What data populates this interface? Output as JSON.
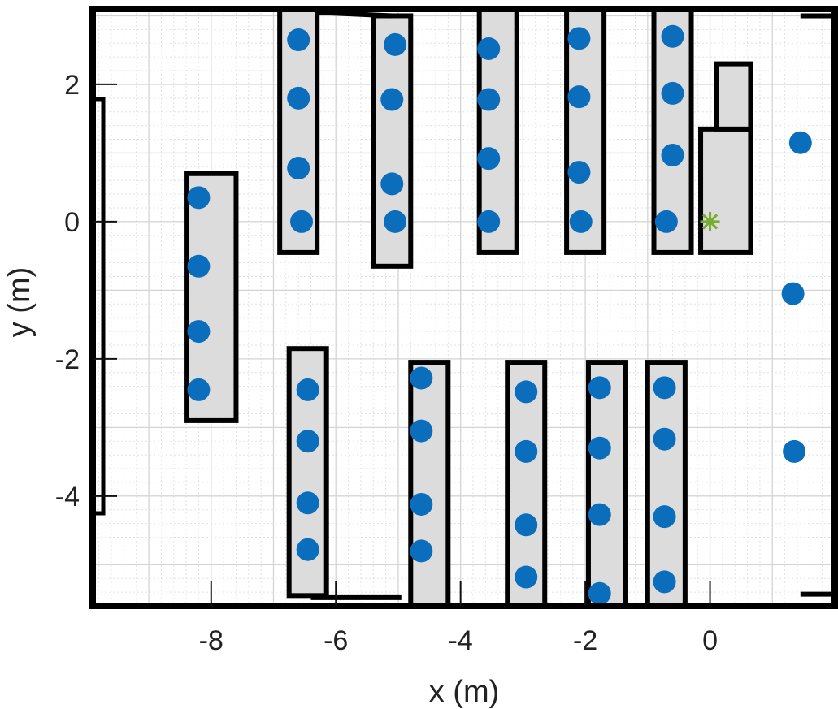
{
  "chart_data": {
    "type": "scatter",
    "xlabel": "x (m)",
    "ylabel": "y (m)",
    "xlim": [
      -9.9,
      2.0
    ],
    "ylim": [
      -5.6,
      3.1
    ],
    "xticks": [
      -8,
      -6,
      -4,
      -2,
      0
    ],
    "xtick_labels": [
      "-8",
      "-6",
      "-4",
      "-2",
      "0"
    ],
    "yticks": [
      2,
      0,
      -2,
      -4
    ],
    "ytick_labels": [
      "2",
      "0",
      "-2",
      "-4"
    ],
    "minor_step": 0.2,
    "grid": true,
    "colors": {
      "points": "#0a6ebd",
      "marker": "#77ac30",
      "obstacle_fill": "#dcdcdc",
      "obstacle_edge": "#000000",
      "grid_major": "#d4d4d4",
      "grid_minor": "#e2e2e2"
    },
    "obstacles": [
      {
        "x0": -8.4,
        "x1": -7.6,
        "y0": -2.9,
        "y1": 0.7
      },
      {
        "x0": -6.9,
        "x1": -6.3,
        "y0": -0.45,
        "y1": 3.1
      },
      {
        "x0": -5.4,
        "x1": -4.8,
        "y0": -0.65,
        "y1": 3.0
      },
      {
        "x0": -3.7,
        "x1": -3.1,
        "y0": -0.45,
        "y1": 3.1
      },
      {
        "x0": -2.3,
        "x1": -1.7,
        "y0": -0.45,
        "y1": 3.1
      },
      {
        "x0": -0.9,
        "x1": -0.3,
        "y0": -0.45,
        "y1": 3.1
      },
      {
        "x0": -6.75,
        "x1": -6.15,
        "y0": -5.45,
        "y1": -1.85
      },
      {
        "x0": -4.8,
        "x1": -4.2,
        "y0": -5.6,
        "y1": -2.05
      },
      {
        "x0": -3.25,
        "x1": -2.65,
        "y0": -5.6,
        "y1": -2.05
      },
      {
        "x0": -1.95,
        "x1": -1.35,
        "y0": -5.6,
        "y1": -2.05
      },
      {
        "x0": -1.0,
        "x1": -0.4,
        "y0": -5.6,
        "y1": -2.05
      },
      {
        "x0": -0.15,
        "x1": 0.65,
        "y0": -0.45,
        "y1": 1.35
      },
      {
        "x0": 0.1,
        "x1": 0.65,
        "y0": 1.35,
        "y1": 2.3
      }
    ],
    "walls": [
      {
        "x0": -6.3,
        "x1": -5.1,
        "y0": 3.05,
        "y1": 3.0
      },
      {
        "x0": -6.4,
        "x1": -4.95,
        "y0": -5.48,
        "y1": -5.48
      },
      {
        "x0": 1.45,
        "x1": 2.0,
        "y0": 3.0,
        "y1": 3.0
      },
      {
        "x0": 1.45,
        "x1": 2.0,
        "y0": -5.43,
        "y1": -5.43
      }
    ],
    "points": [
      {
        "x": -8.2,
        "y": 0.35
      },
      {
        "x": -8.2,
        "y": -0.65
      },
      {
        "x": -8.2,
        "y": -1.6
      },
      {
        "x": -8.2,
        "y": -2.45
      },
      {
        "x": -6.6,
        "y": 2.65
      },
      {
        "x": -6.6,
        "y": 1.8
      },
      {
        "x": -6.6,
        "y": 0.78
      },
      {
        "x": -6.55,
        "y": 0.0
      },
      {
        "x": -5.05,
        "y": 2.58
      },
      {
        "x": -5.1,
        "y": 1.78
      },
      {
        "x": -5.1,
        "y": 0.55
      },
      {
        "x": -5.05,
        "y": 0.0
      },
      {
        "x": -3.55,
        "y": 2.52
      },
      {
        "x": -3.55,
        "y": 1.78
      },
      {
        "x": -3.55,
        "y": 0.92
      },
      {
        "x": -3.55,
        "y": 0.0
      },
      {
        "x": -2.1,
        "y": 2.67
      },
      {
        "x": -2.1,
        "y": 1.82
      },
      {
        "x": -2.1,
        "y": 0.72
      },
      {
        "x": -2.07,
        "y": 0.0
      },
      {
        "x": -0.6,
        "y": 2.7
      },
      {
        "x": -0.6,
        "y": 1.87
      },
      {
        "x": -0.6,
        "y": 0.97
      },
      {
        "x": -0.7,
        "y": 0.0
      },
      {
        "x": 1.45,
        "y": 1.15
      },
      {
        "x": 1.33,
        "y": -1.05
      },
      {
        "x": 1.35,
        "y": -3.35
      },
      {
        "x": -6.45,
        "y": -2.45
      },
      {
        "x": -6.45,
        "y": -3.2
      },
      {
        "x": -6.45,
        "y": -4.1
      },
      {
        "x": -6.45,
        "y": -4.78
      },
      {
        "x": -4.63,
        "y": -2.28
      },
      {
        "x": -4.63,
        "y": -3.05
      },
      {
        "x": -4.63,
        "y": -4.12
      },
      {
        "x": -4.63,
        "y": -4.8
      },
      {
        "x": -2.95,
        "y": -2.48
      },
      {
        "x": -2.95,
        "y": -3.35
      },
      {
        "x": -2.95,
        "y": -4.42
      },
      {
        "x": -2.95,
        "y": -5.18
      },
      {
        "x": -1.77,
        "y": -2.42
      },
      {
        "x": -1.77,
        "y": -3.3
      },
      {
        "x": -1.77,
        "y": -4.27
      },
      {
        "x": -1.77,
        "y": -5.42
      },
      {
        "x": -0.73,
        "y": -2.42
      },
      {
        "x": -0.73,
        "y": -3.17
      },
      {
        "x": -0.73,
        "y": -4.3
      },
      {
        "x": -0.73,
        "y": -5.25
      }
    ],
    "marker": {
      "x": 0.0,
      "y": 0.0,
      "symbol": "asterisk"
    }
  }
}
